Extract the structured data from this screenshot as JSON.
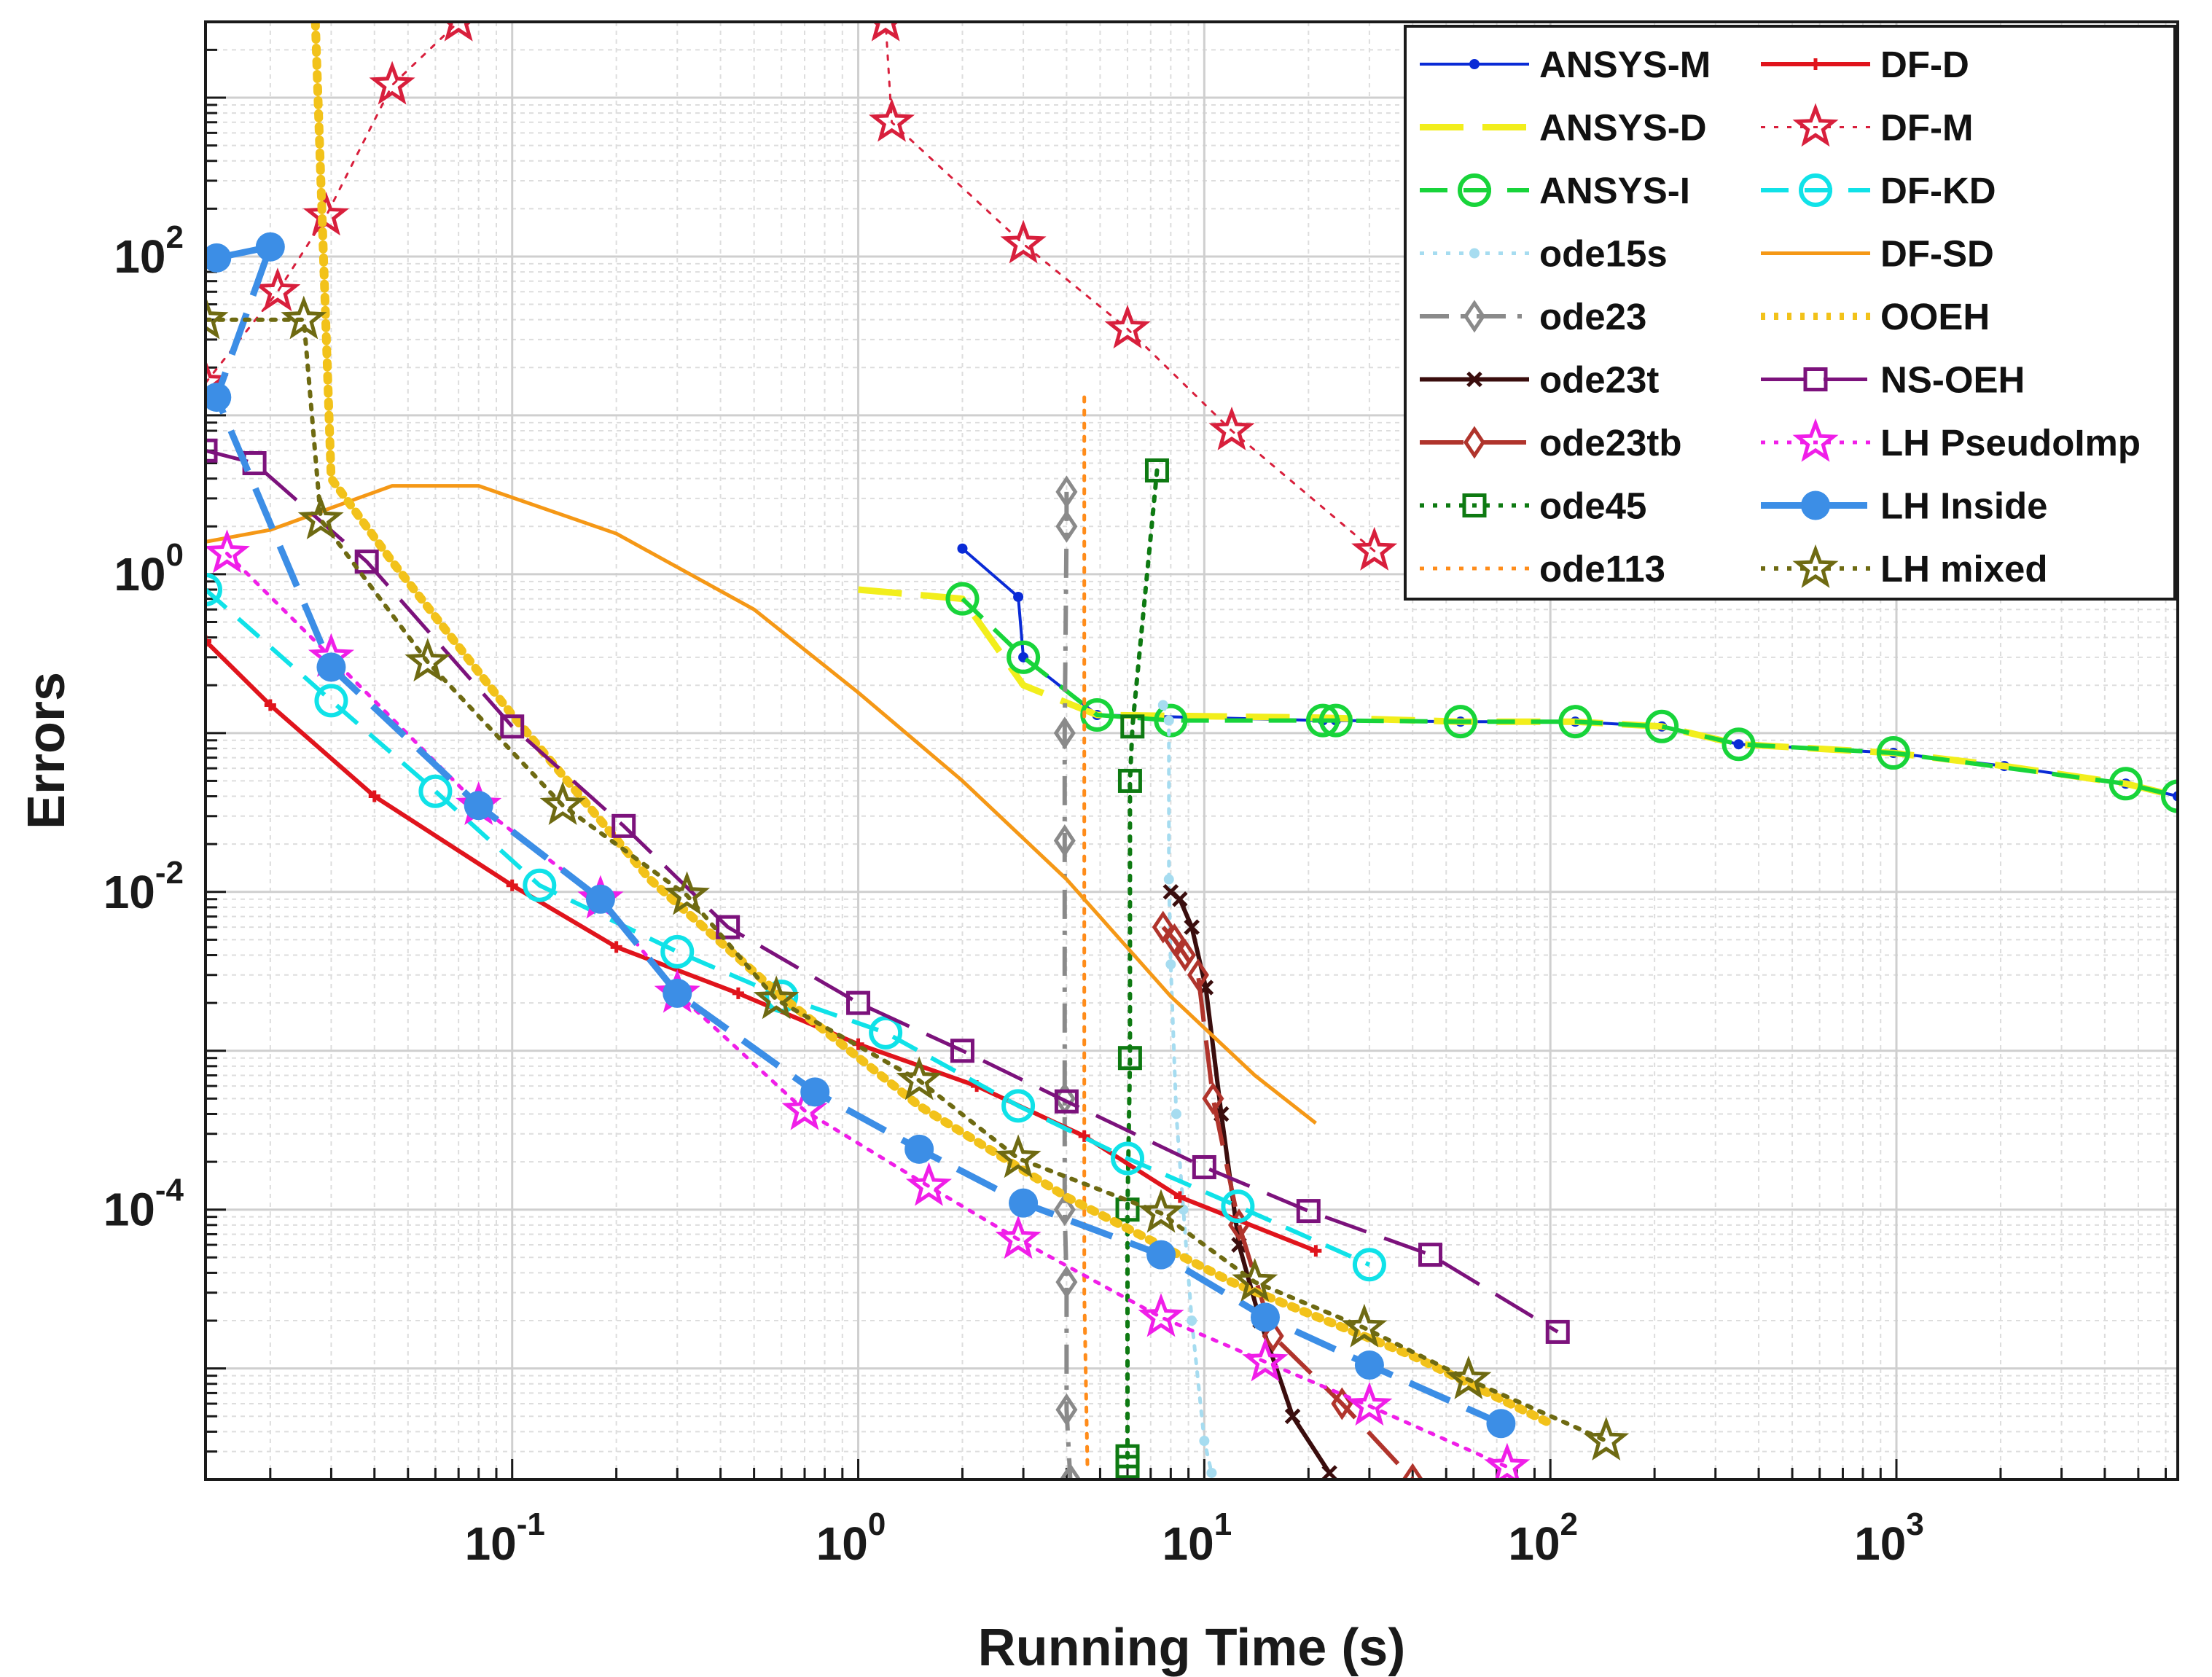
{
  "chart_data": {
    "type": "line",
    "xscale": "log",
    "yscale": "log",
    "xlim": [
      0.013,
      6500
    ],
    "ylim": [
      2e-06,
      3000
    ],
    "xlabel": "Running Time (s)",
    "ylabel": "Errors",
    "xticks": [
      {
        "base": "10",
        "exp": "-1",
        "value": 0.1
      },
      {
        "base": "10",
        "exp": "0",
        "value": 1
      },
      {
        "base": "10",
        "exp": "1",
        "value": 10
      },
      {
        "base": "10",
        "exp": "2",
        "value": 100
      },
      {
        "base": "10",
        "exp": "3",
        "value": 1000
      }
    ],
    "yticks": [
      {
        "base": "10",
        "exp": "-4",
        "value": 0.0001
      },
      {
        "base": "10",
        "exp": "-2",
        "value": 0.01
      },
      {
        "base": "10",
        "exp": "0",
        "value": 1
      },
      {
        "base": "10",
        "exp": "2",
        "value": 100
      }
    ],
    "grid": true,
    "legend_position": "top-right",
    "series": [
      {
        "name": "ANSYS-M",
        "color": "#0a2bd6",
        "dash": "solid",
        "marker": "dot",
        "width": 4,
        "points": [
          [
            2.0,
            1.45
          ],
          [
            2.9,
            0.72
          ],
          [
            3.0,
            0.3
          ],
          [
            4.9,
            0.13
          ],
          [
            22,
            0.12
          ],
          [
            24,
            0.12
          ],
          [
            55,
            0.118
          ],
          [
            118,
            0.118
          ],
          [
            210,
            0.11
          ],
          [
            350,
            0.085
          ],
          [
            980,
            0.075
          ],
          [
            2050,
            0.062
          ],
          [
            4600,
            0.048
          ],
          [
            6500,
            0.04
          ]
        ]
      },
      {
        "name": "ANSYS-D",
        "color": "#f2ee1c",
        "dash": "longdash",
        "marker": "none",
        "width": 9,
        "points": [
          [
            1.0,
            0.8
          ],
          [
            2.0,
            0.7
          ],
          [
            3.0,
            0.2
          ],
          [
            4.9,
            0.13
          ],
          [
            22,
            0.125
          ],
          [
            55,
            0.118
          ],
          [
            118,
            0.118
          ],
          [
            210,
            0.11
          ],
          [
            350,
            0.085
          ],
          [
            980,
            0.075
          ],
          [
            2050,
            0.062
          ],
          [
            4600,
            0.048
          ],
          [
            6500,
            0.04
          ]
        ]
      },
      {
        "name": "ANSYS-I",
        "color": "#18d43a",
        "dash": "dash",
        "marker": "circle",
        "width": 6,
        "points": [
          [
            2.0,
            0.7
          ],
          [
            3.0,
            0.3
          ],
          [
            4.9,
            0.13
          ],
          [
            8,
            0.12
          ],
          [
            22,
            0.12
          ],
          [
            24,
            0.12
          ],
          [
            55,
            0.118
          ],
          [
            118,
            0.118
          ],
          [
            210,
            0.11
          ],
          [
            350,
            0.085
          ],
          [
            980,
            0.075
          ],
          [
            4600,
            0.048
          ],
          [
            6500,
            0.04
          ]
        ]
      },
      {
        "name": "ode15s",
        "color": "#a6dcf0",
        "dash": "dot",
        "marker": "dot",
        "width": 5,
        "points": [
          [
            7.6,
            0.15
          ],
          [
            7.9,
            0.12
          ],
          [
            7.9,
            0.012
          ],
          [
            8.0,
            0.0035
          ],
          [
            8.3,
            0.0004
          ],
          [
            8.7,
            0.0001
          ],
          [
            9.2,
            2e-05
          ],
          [
            10,
            3.5e-06
          ],
          [
            10.5,
            2.2e-06
          ]
        ]
      },
      {
        "name": "ode23",
        "color": "#8a8a8a",
        "dash": "dashdot",
        "marker": "diamond",
        "width": 6,
        "points": [
          [
            4.0,
            3.3
          ],
          [
            4.0,
            2.0
          ],
          [
            3.95,
            0.1
          ],
          [
            3.95,
            0.021
          ],
          [
            3.95,
            0.0005
          ],
          [
            3.95,
            0.0001
          ],
          [
            4.0,
            3.5e-05
          ],
          [
            4.0,
            5.5e-06
          ],
          [
            4.1,
            2e-06
          ]
        ]
      },
      {
        "name": "ode23t",
        "color": "#3a0d0d",
        "dash": "solid",
        "marker": "x",
        "width": 6,
        "points": [
          [
            8.0,
            0.01
          ],
          [
            8.5,
            0.009
          ],
          [
            9.2,
            0.006
          ],
          [
            10.1,
            0.0025
          ],
          [
            11.2,
            0.0004
          ],
          [
            12.6,
            6e-05
          ],
          [
            14.5,
            2e-05
          ],
          [
            18,
            5e-06
          ],
          [
            23,
            2.2e-06
          ]
        ]
      },
      {
        "name": "ode23tb",
        "color": "#b0342c",
        "dash": "longdash",
        "marker": "diamond",
        "width": 6,
        "points": [
          [
            7.6,
            0.006
          ],
          [
            8.2,
            0.005
          ],
          [
            8.8,
            0.004
          ],
          [
            9.6,
            0.003
          ],
          [
            10.6,
            0.0005
          ],
          [
            12.6,
            8e-05
          ],
          [
            15.8,
            1.6e-05
          ],
          [
            25,
            6e-06
          ],
          [
            40,
            2e-06
          ]
        ]
      },
      {
        "name": "ode45",
        "color": "#0e7a12",
        "dash": "dot",
        "marker": "square",
        "width": 6,
        "points": [
          [
            7.3,
            4.5
          ],
          [
            6.2,
            0.11
          ],
          [
            6.1,
            0.05
          ],
          [
            6.1,
            0.0009
          ],
          [
            6.0,
            0.0001
          ],
          [
            6.0,
            2.8e-06
          ],
          [
            6.0,
            2.4e-06
          ]
        ]
      },
      {
        "name": "ode113",
        "color": "#ff8c1a",
        "dash": "dot",
        "marker": "none",
        "width": 5,
        "points": [
          [
            4.5,
            13
          ],
          [
            4.5,
            0.3
          ],
          [
            4.5,
            0.01
          ],
          [
            4.5,
            0.0003
          ],
          [
            4.5,
            3e-05
          ],
          [
            4.6,
            2.2e-06
          ]
        ]
      },
      {
        "name": "DF-D",
        "color": "#e0141c",
        "dash": "solid",
        "marker": "plus",
        "width": 6,
        "points": [
          [
            0.013,
            0.38
          ],
          [
            0.02,
            0.15
          ],
          [
            0.04,
            0.04
          ],
          [
            0.1,
            0.011
          ],
          [
            0.2,
            0.0045
          ],
          [
            0.45,
            0.0023
          ],
          [
            1.0,
            0.0011
          ],
          [
            2.2,
            0.0006
          ],
          [
            4.5,
            0.00029
          ],
          [
            8.5,
            0.00012
          ],
          [
            21,
            5.5e-05
          ]
        ]
      },
      {
        "name": "DF-M",
        "color": "#d81f3c",
        "dash": "dot",
        "marker": "star",
        "width": 3,
        "points": [
          [
            0.013,
            16
          ],
          [
            0.021,
            60
          ],
          [
            0.029,
            180
          ],
          [
            0.045,
            1200
          ],
          [
            0.07,
            3000
          ],
          [
            1.2,
            3000
          ],
          [
            1.25,
            700
          ],
          [
            3.0,
            120
          ],
          [
            6.0,
            35
          ],
          [
            12,
            8
          ],
          [
            31,
            1.4
          ]
        ]
      },
      {
        "name": "DF-KD",
        "color": "#10e2e8",
        "dash": "dash",
        "marker": "circle",
        "width": 6,
        "points": [
          [
            0.013,
            0.8
          ],
          [
            0.03,
            0.16
          ],
          [
            0.06,
            0.043
          ],
          [
            0.12,
            0.011
          ],
          [
            0.3,
            0.0042
          ],
          [
            0.6,
            0.0022
          ],
          [
            1.2,
            0.0013
          ],
          [
            2.9,
            0.00045
          ],
          [
            6.0,
            0.00021
          ],
          [
            12.5,
            0.000105
          ],
          [
            30,
            4.5e-05
          ]
        ]
      },
      {
        "name": "DF-SD",
        "color": "#f59816",
        "dash": "solid",
        "marker": "none",
        "width": 5,
        "points": [
          [
            0.013,
            1.6
          ],
          [
            0.02,
            1.9
          ],
          [
            0.045,
            3.6
          ],
          [
            0.08,
            3.6
          ],
          [
            0.2,
            1.8
          ],
          [
            0.5,
            0.6
          ],
          [
            1.0,
            0.18
          ],
          [
            2.0,
            0.05
          ],
          [
            4.0,
            0.012
          ],
          [
            8,
            0.0022
          ],
          [
            14,
            0.0007
          ],
          [
            21,
            0.00035
          ]
        ]
      },
      {
        "name": "OOEH",
        "color": "#f2c21a",
        "dash": "dot",
        "marker": "none",
        "width": 12,
        "points": [
          [
            0.027,
            3000
          ],
          [
            0.03,
            4
          ],
          [
            0.045,
            1.2
          ],
          [
            0.1,
            0.13
          ],
          [
            0.25,
            0.012
          ],
          [
            0.6,
            0.0022
          ],
          [
            1.5,
            0.00045
          ],
          [
            4,
            0.00012
          ],
          [
            12,
            3.5e-05
          ],
          [
            40,
            1.2e-05
          ],
          [
            100,
            4.5e-06
          ]
        ]
      },
      {
        "name": "NS-OEH",
        "color": "#7c127c",
        "dash": "longdash",
        "marker": "square",
        "width": 5,
        "points": [
          [
            0.013,
            6
          ],
          [
            0.018,
            5
          ],
          [
            0.038,
            1.2
          ],
          [
            0.1,
            0.11
          ],
          [
            0.21,
            0.026
          ],
          [
            0.42,
            0.006
          ],
          [
            1.0,
            0.002
          ],
          [
            2.0,
            0.001
          ],
          [
            4.0,
            0.00048
          ],
          [
            10,
            0.000185
          ],
          [
            20,
            9.8e-05
          ],
          [
            45,
            5.2e-05
          ],
          [
            105,
            1.7e-05
          ]
        ]
      },
      {
        "name": "LH PseudoImp",
        "color": "#f01ee8",
        "dash": "dot",
        "marker": "star",
        "width": 5,
        "points": [
          [
            0.015,
            1.35
          ],
          [
            0.03,
            0.3
          ],
          [
            0.08,
            0.035
          ],
          [
            0.18,
            0.009
          ],
          [
            0.3,
            0.0023
          ],
          [
            0.7,
            0.00042
          ],
          [
            1.6,
            0.00014
          ],
          [
            2.9,
            6.5e-05
          ],
          [
            7.5,
            2.1e-05
          ],
          [
            15,
            1.1e-05
          ],
          [
            30,
            5.8e-06
          ],
          [
            75,
            2.4e-06
          ]
        ]
      },
      {
        "name": "LH Inside",
        "color": "#3c8ee6",
        "dash": "longdash",
        "marker": "dot-big",
        "width": 9,
        "points": [
          [
            0.014,
            98
          ],
          [
            0.02,
            115
          ],
          [
            0.014,
            13
          ],
          [
            0.03,
            0.26
          ],
          [
            0.08,
            0.035
          ],
          [
            0.18,
            0.009
          ],
          [
            0.3,
            0.0023
          ],
          [
            0.75,
            0.00055
          ],
          [
            1.5,
            0.00024
          ],
          [
            3.0,
            0.00011
          ],
          [
            7.5,
            5.2e-05
          ],
          [
            15,
            2.1e-05
          ],
          [
            30,
            1.05e-05
          ],
          [
            72,
            4.5e-06
          ]
        ]
      },
      {
        "name": "LH mixed",
        "color": "#6e6a12",
        "dash": "dot",
        "marker": "star",
        "width": 6,
        "points": [
          [
            0.013,
            40
          ],
          [
            0.025,
            40
          ],
          [
            0.028,
            2.2
          ],
          [
            0.057,
            0.28
          ],
          [
            0.14,
            0.035
          ],
          [
            0.32,
            0.0095
          ],
          [
            0.58,
            0.0021
          ],
          [
            1.5,
            0.00065
          ],
          [
            2.9,
            0.00021
          ],
          [
            7.5,
            9.5e-05
          ],
          [
            14,
            3.5e-05
          ],
          [
            29,
            1.8e-05
          ],
          [
            58,
            8.5e-06
          ],
          [
            145,
            3.5e-06
          ]
        ]
      }
    ]
  }
}
